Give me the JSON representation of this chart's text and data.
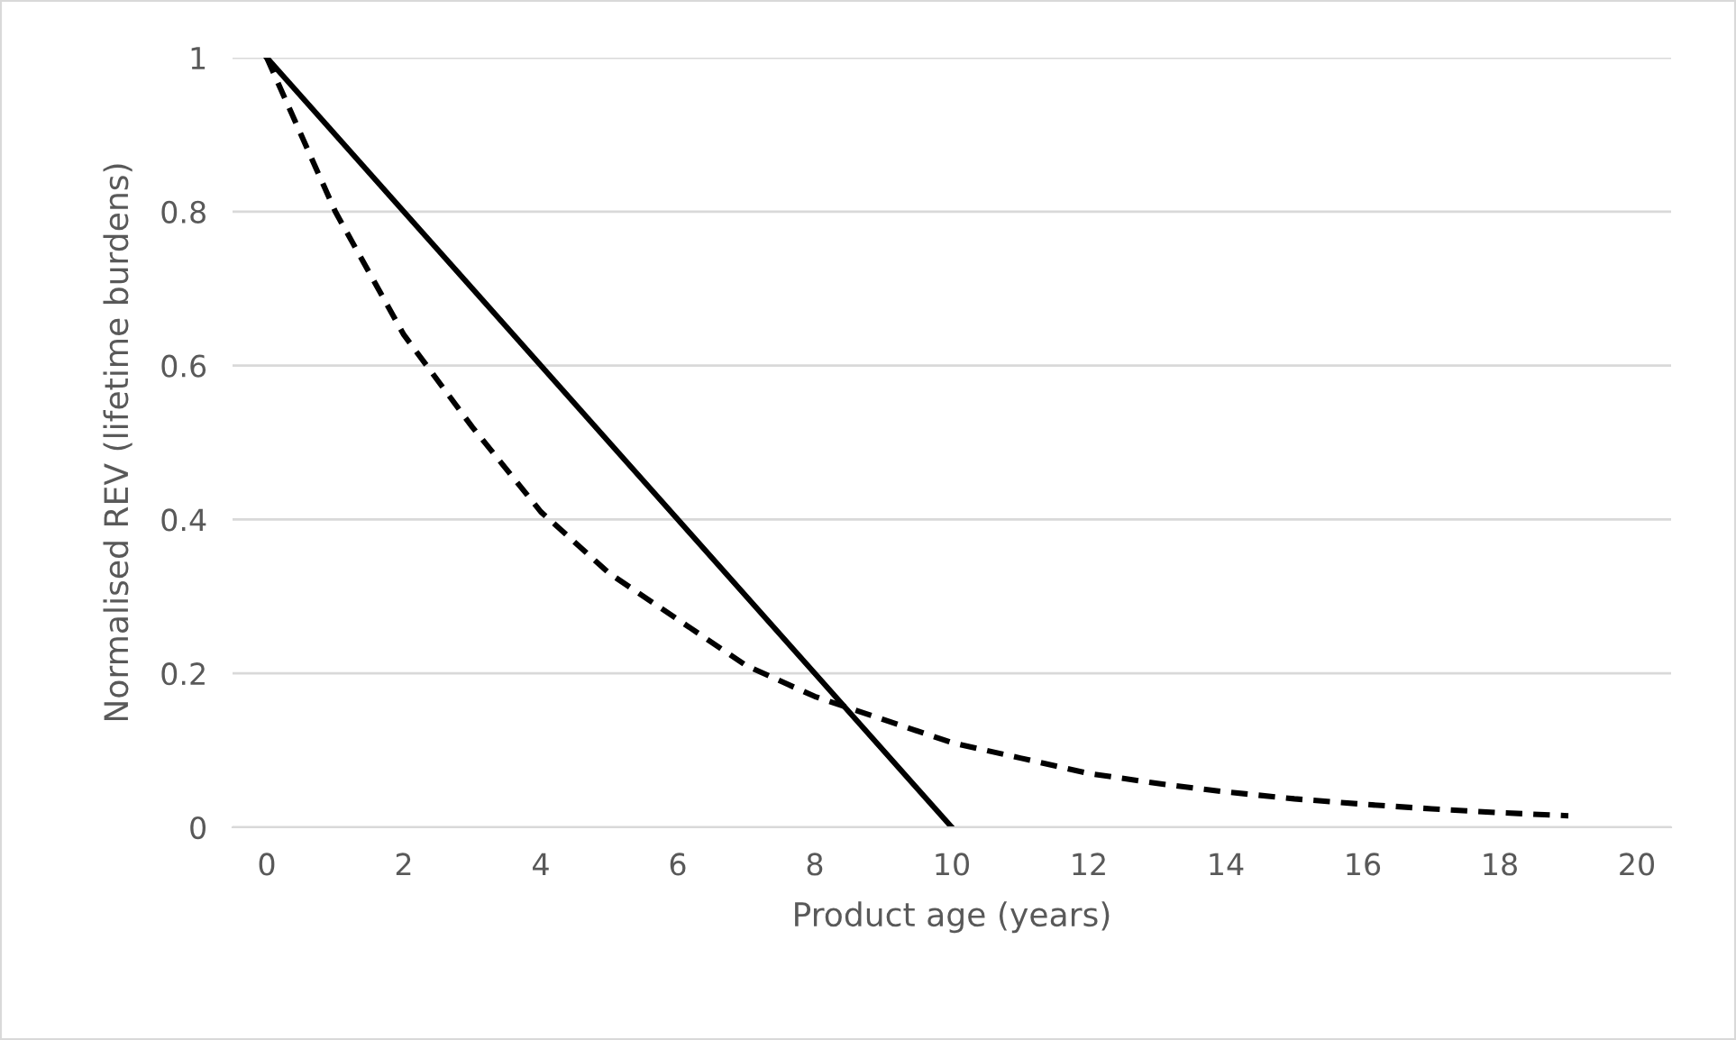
{
  "chart_data": {
    "type": "line",
    "xlabel": "Product age (years)",
    "ylabel": "Normalised REV (lifetime burdens)",
    "series": [
      {
        "color": "#000000",
        "line_style": "solid",
        "x": [
          0,
          10
        ],
        "values": [
          1,
          0
        ]
      },
      {
        "color": "#000000",
        "line_style": "dashed",
        "x": [
          0,
          1,
          2,
          3,
          4,
          5,
          6,
          7,
          8,
          9,
          10,
          11,
          12,
          13,
          14,
          15,
          16,
          17,
          18,
          19
        ],
        "values": [
          1,
          0.8,
          0.64,
          0.52,
          0.41,
          0.33,
          0.27,
          0.21,
          0.17,
          0.14,
          0.11,
          0.09,
          0.07,
          0.057,
          0.046,
          0.037,
          0.03,
          0.024,
          0.019,
          0.015
        ]
      }
    ],
    "xlim": [
      -0.5,
      20.5
    ],
    "xticks": [
      0,
      2,
      4,
      6,
      8,
      10,
      12,
      14,
      16,
      18,
      20
    ],
    "ylim": [
      0,
      1
    ],
    "yticks": [
      0,
      0.2,
      0.4,
      0.6,
      0.8,
      1
    ],
    "grid": "y",
    "legend": false,
    "marker": "none"
  }
}
